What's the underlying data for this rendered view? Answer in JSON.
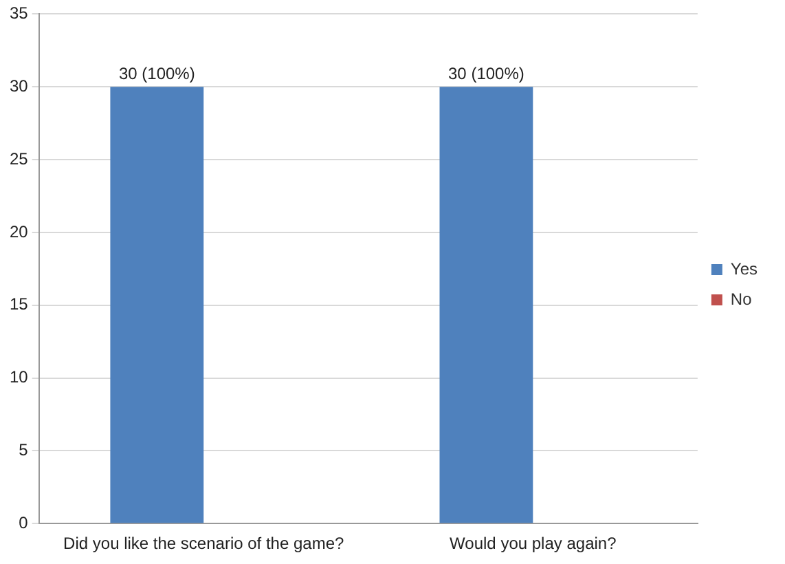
{
  "chart_data": {
    "type": "bar",
    "categories": [
      "Did you like the scenario of the game?",
      "Would you play again?"
    ],
    "series": [
      {
        "name": "Yes",
        "color": "#4f81bd",
        "values": [
          30,
          30
        ],
        "value_labels": [
          "30 (100%)",
          "30 (100%)"
        ]
      },
      {
        "name": "No",
        "color": "#c0504d",
        "values": [
          0,
          0
        ]
      }
    ],
    "ylim": [
      0,
      35
    ],
    "yticks": [
      0,
      5,
      10,
      15,
      20,
      25,
      30,
      35
    ],
    "grid": "y",
    "legend": "right"
  }
}
